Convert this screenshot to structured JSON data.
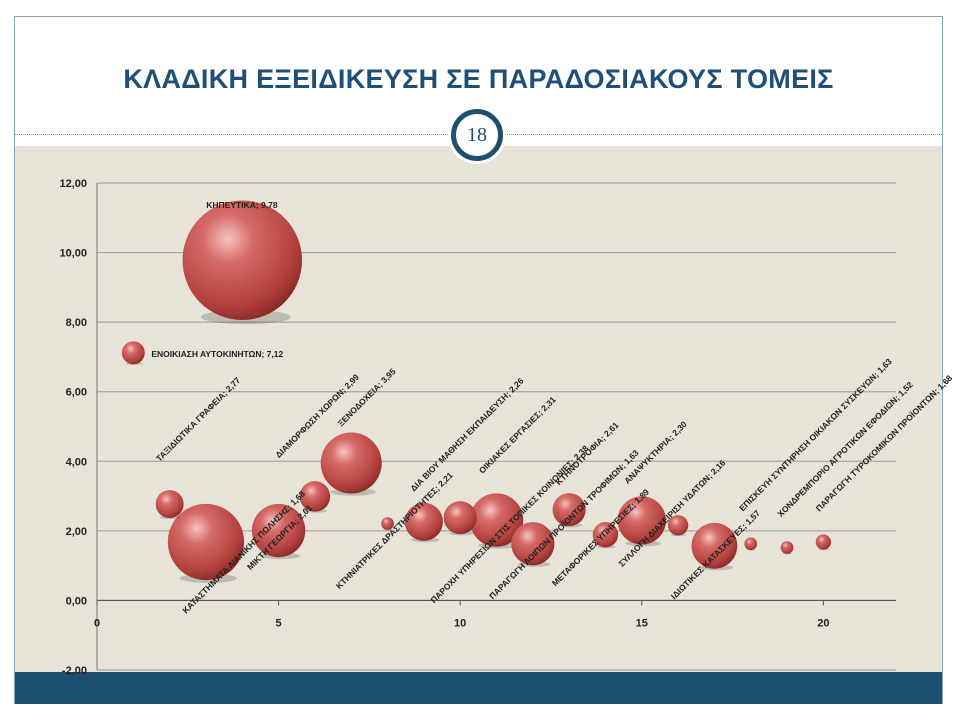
{
  "slide": {
    "title": "ΚΛΑΔΙΚΗ ΕΞΕΙΔΙΚΕΥΣΗ ΣΕ ΠΑΡΑΔΟΣΙΑΚΟΥΣ ΤΟΜΕΙΣ",
    "page_number": "18",
    "colors": {
      "title": "#1f4e79",
      "background": "#e8e3d8",
      "footer": "#1c4f6e",
      "bubble": "#c0504d"
    }
  },
  "chart_data": {
    "type": "scatter",
    "variant": "bubble",
    "xlim": [
      0,
      22
    ],
    "ylim": [
      -2,
      12
    ],
    "x_ticks": [
      0,
      5,
      10,
      15,
      20
    ],
    "x_tick_labels": [
      "0",
      "5",
      "10",
      "15",
      "20"
    ],
    "y_ticks": [
      -2,
      0,
      2,
      4,
      6,
      8,
      10,
      12
    ],
    "y_tick_labels": [
      "-2,00",
      "0,00",
      "2,00",
      "4,00",
      "6,00",
      "8,00",
      "10,00",
      "12,00"
    ],
    "grid": true,
    "points": [
      {
        "x": 1,
        "y": 7.12,
        "r": 0.9,
        "label": "ΕΝΟΙΚΙΑΣΗ ΑΥΤΟΚΙΝΗΤΩΝ; 7,12"
      },
      {
        "x": 2,
        "y": 2.77,
        "r": 1.1,
        "label": "ΤΑΞΙΔΙΩΤΙΚΑ ΓΡΑΦΕΙΑ; 2,77"
      },
      {
        "x": 3,
        "y": 1.68,
        "r": 3.0,
        "label": "ΚΑΤΑΣΤΗΜΑΤΑ ΛΙΑΝΙΚΗΣ ΠΩΛΗΣΗΣ; 1,68"
      },
      {
        "x": 4,
        "y": 9.78,
        "r": 4.7,
        "label": "ΚΗΠΕΥΤΙΚΑ; 9,78"
      },
      {
        "x": 5,
        "y": 2.01,
        "r": 2.1,
        "label": "ΜΙΚΤΗ ΓΕΩΡΓΙΑ; 2,01"
      },
      {
        "x": 6,
        "y": 2.99,
        "r": 1.2,
        "label": "ΔΙΑΜΟΡΦΩΣΗ ΧΩΡΩΝ; 2,99"
      },
      {
        "x": 7,
        "y": 3.95,
        "r": 2.4,
        "label": "ΞΕΝΟΔΟΧΕΙΑ; 3,95"
      },
      {
        "x": 8,
        "y": 2.21,
        "r": 0.5,
        "label": "ΚΤΗΝΙΑΤΡΙΚΕΣ ΔΡΑΣΤΗΡΙΟΤΗΤΕΣ; 2,21"
      },
      {
        "x": 9,
        "y": 2.26,
        "r": 1.5,
        "label": "ΔΙΑ ΒΙΟΥ ΜΑΘΗΣΗ ΕΚΠΑΙΔΕΥΣΗ; 2,26"
      },
      {
        "x": 10,
        "y": 2.38,
        "r": 1.3,
        "label": "ΠΑΡΟΧΗ ΥΠΗΡΕΣΙΩΝ ΣΤΙΣ ΤΟΠΙΚΕΣ ΚΟΙΝΩΝΙΕΣ; 2,38"
      },
      {
        "x": 11,
        "y": 2.31,
        "r": 2.1,
        "label": "ΟΙΚΙΑΚΕΣ ΕΡΓΑΣΙΕΣ; 2,31"
      },
      {
        "x": 12,
        "y": 1.63,
        "r": 1.7,
        "label": "ΠΑΡΑΓΩΓΗ ΛΟΙΠΩΝ ΠΡΟΪΟΝΤΩΝ ΤΡΟΦΙΜΩΝ; 1,63"
      },
      {
        "x": 13,
        "y": 2.61,
        "r": 1.3,
        "label": "ΚΤΗΝΟΤΡΟΦΙΑ; 2,61"
      },
      {
        "x": 14,
        "y": 1.89,
        "r": 1.0,
        "label": "ΜΕΤΑΦΟΡΙΚΕΣ ΥΠΗΡΕΣΙΕΣ; 1,89"
      },
      {
        "x": 15,
        "y": 2.3,
        "r": 1.9,
        "label": "ΑΝΑΨΥΚΤΗΡΙΑ; 2,30"
      },
      {
        "x": 16,
        "y": 2.16,
        "r": 0.8,
        "label": "ΣΥΛΛΟΓΗ ΔΙΑΧΕΙΡΙΣΗ ΥΔΑΤΩΝ; 2,16"
      },
      {
        "x": 17,
        "y": 1.57,
        "r": 1.8,
        "label": "ΙΔΙΩΤΙΚΕΣ ΚΑΤΑΣΚΕΥΕΣ; 1,57"
      },
      {
        "x": 18,
        "y": 1.63,
        "r": 0.5,
        "label": "ΕΠΙΣΚΕΥΗ ΣΥΝΤΗΡΗΣΗ ΟΙΚΙΑΚΩΝ ΣΥΣΚΕΥΩΝ; 1,63"
      },
      {
        "x": 19,
        "y": 1.52,
        "r": 0.5,
        "label": "ΧΟΝΔΡΕΜΠΟΡΙΟ ΑΓΡΟΤΙΚΩΝ ΕΦΟΔΙΩΝ; 1,52"
      },
      {
        "x": 20,
        "y": 1.68,
        "r": 0.6,
        "label": "ΠΑΡΑΓΩΓΗ ΤΥΡΟΚΟΜΙΚΩΝ ΠΡΟΪΟΝΤΩΝ; 1,68"
      }
    ]
  }
}
